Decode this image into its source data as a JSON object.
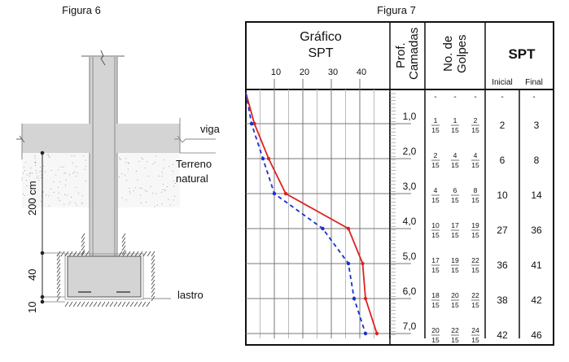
{
  "figure6": {
    "title": "Figura 6",
    "labels": {
      "beam": "viga",
      "ground": "Terreno",
      "ground2": "natural",
      "base": "lastro"
    },
    "dimensions": {
      "upper": "200 cm",
      "middle": "40",
      "lower": "10"
    }
  },
  "figure7": {
    "title": "Figura 7",
    "headers": {
      "chart_line1": "Gráfico",
      "chart_line2": "SPT",
      "prof_line1": "Prof.",
      "prof_line2": "Camadas",
      "golpes_line1": "No. de",
      "golpes_line2": "Golpes",
      "spt": "SPT",
      "inicial": "Inicial",
      "final": "Final"
    },
    "axis_ticks": [
      "10",
      "20",
      "30",
      "40"
    ],
    "depth_labels": [
      "1,0",
      "2,0",
      "3,0",
      "4,0",
      "5,0",
      "6,0",
      "7,0"
    ],
    "first_row_dash": "-",
    "rows": [
      {
        "golpes": [
          [
            "1",
            "15"
          ],
          [
            "1",
            "15"
          ],
          [
            "2",
            "15"
          ]
        ],
        "inicial": "2",
        "final": "3"
      },
      {
        "golpes": [
          [
            "2",
            "15"
          ],
          [
            "4",
            "15"
          ],
          [
            "4",
            "15"
          ]
        ],
        "inicial": "6",
        "final": "8"
      },
      {
        "golpes": [
          [
            "4",
            "15"
          ],
          [
            "6",
            "15"
          ],
          [
            "8",
            "15"
          ]
        ],
        "inicial": "10",
        "final": "14"
      },
      {
        "golpes": [
          [
            "10",
            "15"
          ],
          [
            "17",
            "15"
          ],
          [
            "19",
            "15"
          ]
        ],
        "inicial": "27",
        "final": "36"
      },
      {
        "golpes": [
          [
            "17",
            "15"
          ],
          [
            "19",
            "15"
          ],
          [
            "22",
            "15"
          ]
        ],
        "inicial": "36",
        "final": "41"
      },
      {
        "golpes": [
          [
            "18",
            "15"
          ],
          [
            "20",
            "15"
          ],
          [
            "22",
            "15"
          ]
        ],
        "inicial": "38",
        "final": "42"
      },
      {
        "golpes": [
          [
            "20",
            "15"
          ],
          [
            "22",
            "15"
          ],
          [
            "24",
            "15"
          ]
        ],
        "inicial": "42",
        "final": "46"
      }
    ]
  },
  "chart_data": {
    "type": "line",
    "title": "Gráfico SPT",
    "xlim": [
      0,
      45
    ],
    "x_ticks": [
      10,
      20,
      30,
      40
    ],
    "depths": [
      1.45,
      2.45,
      3.45,
      4.45,
      5.45,
      6.45,
      7.45
    ],
    "series": [
      {
        "name": "Final",
        "color": "#e02020",
        "style": "solid",
        "values": [
          3,
          8,
          14,
          36,
          41,
          42,
          46
        ]
      },
      {
        "name": "Inicial",
        "color": "#1a2fd0",
        "style": "dashed",
        "values": [
          2,
          6,
          10,
          27,
          36,
          38,
          42
        ]
      }
    ]
  }
}
